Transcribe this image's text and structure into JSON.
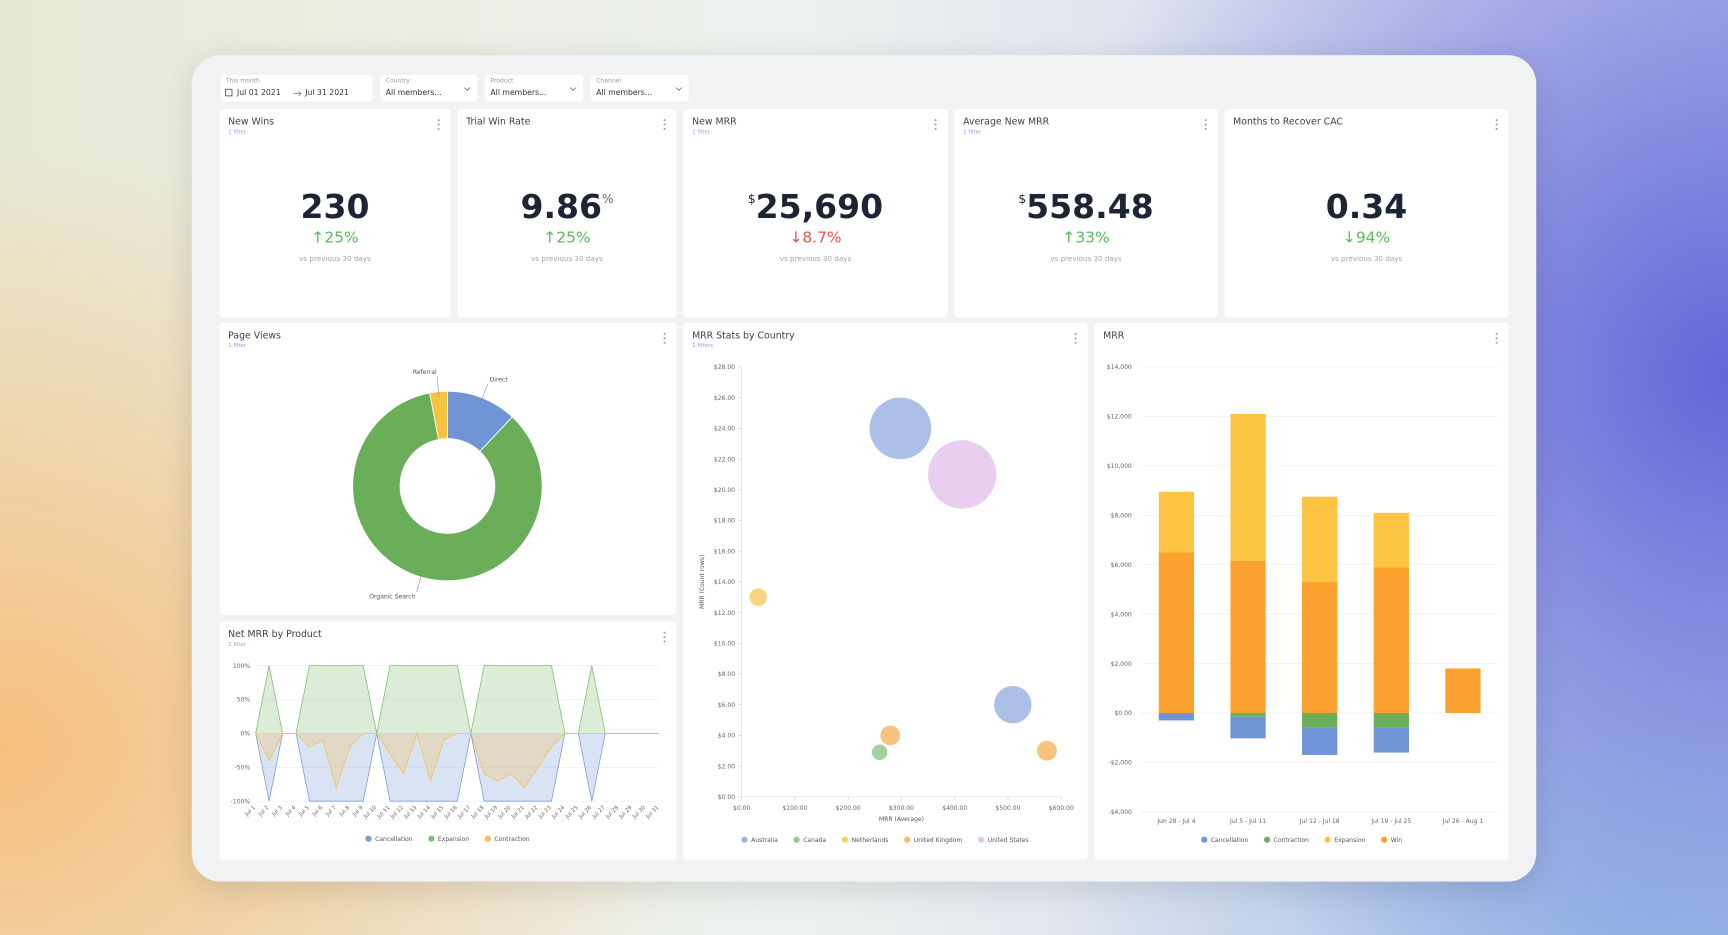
{
  "filters": [
    {
      "label": "This month",
      "start": "Jul 01 2021",
      "end": "Jul 31 2021"
    },
    {
      "label": "Country",
      "value": "All members..."
    },
    {
      "label": "Product",
      "value": "All members..."
    },
    {
      "label": "Channel",
      "value": "All members..."
    }
  ],
  "kpis": [
    {
      "title": "New Wins",
      "subtitle": "1 filter",
      "value": "230",
      "change": "↑25%",
      "change_color": "#5cb85c",
      "note": "vs previous 30 days"
    },
    {
      "title": "Trial Win Rate",
      "value": "9.86",
      "suffix": "%",
      "change": "↑25%",
      "change_color": "#5cb85c",
      "note": "vs previous 30 days"
    },
    {
      "title": "New MRR",
      "subtitle": "1 filter",
      "prefix": "$",
      "value": "25,690",
      "change": "↓8.7%",
      "change_color": "#e5534b",
      "note": "vs previous 30 days"
    },
    {
      "title": "Average New MRR",
      "subtitle": "1 filter",
      "prefix": "$",
      "value": "558.48",
      "change": "↑33%",
      "change_color": "#5cb85c",
      "note": "vs previous 30 days"
    },
    {
      "title": "Months to Recover CAC",
      "value": "0.34",
      "change": "↓94%",
      "change_color": "#5cb85c",
      "note": "vs previous 30 days"
    }
  ],
  "page_views": {
    "type": "pie",
    "title": "Page Views",
    "subtitle": "1 filter",
    "categories": [
      "Direct",
      "Organic Search",
      "Referral"
    ],
    "values": [
      12,
      85,
      3
    ],
    "colors": [
      "#6f95d6",
      "#6aae5a",
      "#f7c23c"
    ]
  },
  "net_mrr": {
    "type": "area",
    "title": "Net MRR by Product",
    "subtitle": "1 filter",
    "categories": [
      "Jul 1",
      "Jul 2",
      "Jul 3",
      "Jul 4",
      "Jul 5",
      "Jul 6",
      "Jul 7",
      "Jul 8",
      "Jul 9",
      "Jul 10",
      "Jul 11",
      "Jul 12",
      "Jul 13",
      "Jul 14",
      "Jul 15",
      "Jul 16",
      "Jul 17",
      "Jul 18",
      "Jul 19",
      "Jul 20",
      "Jul 21",
      "Jul 22",
      "Jul 23",
      "Jul 24",
      "Jul 25",
      "Jul 26",
      "Jul 27",
      "Jul 28",
      "Jul 29",
      "Jul 30",
      "Jul 31"
    ],
    "ylim": [
      -100,
      100
    ],
    "yticks": [
      {
        "value": 100,
        "label": "100%"
      },
      {
        "value": 50,
        "label": "50%"
      },
      {
        "value": 0,
        "label": "0%"
      },
      {
        "value": -50,
        "label": "-50%"
      },
      {
        "value": -100,
        "label": "-100%"
      }
    ],
    "series": [
      {
        "name": "Cancellation",
        "color": "#7b9bd6",
        "values": [
          0,
          -100,
          0,
          0,
          -100,
          -100,
          -100,
          -100,
          -100,
          0,
          -100,
          -100,
          -100,
          -100,
          -100,
          -100,
          0,
          -100,
          -100,
          -100,
          -100,
          -100,
          -100,
          0,
          0,
          -100,
          0,
          0,
          0,
          0,
          0
        ]
      },
      {
        "name": "Expansion",
        "color": "#7fbf6e",
        "values": [
          0,
          100,
          0,
          0,
          100,
          100,
          100,
          100,
          100,
          0,
          100,
          100,
          100,
          100,
          100,
          100,
          0,
          100,
          100,
          100,
          100,
          100,
          100,
          0,
          0,
          100,
          0,
          0,
          0,
          0,
          0
        ]
      },
      {
        "name": "Contraction",
        "color": "#f5c04a",
        "values": [
          0,
          -40,
          0,
          0,
          -20,
          -10,
          -80,
          -20,
          0,
          0,
          -30,
          -60,
          0,
          -70,
          -10,
          0,
          0,
          -60,
          -70,
          -60,
          -80,
          -50,
          -20,
          0,
          0,
          0,
          0,
          0,
          0,
          0,
          0
        ]
      }
    ]
  },
  "mrr_stats": {
    "type": "scatter",
    "title": "MRR Stats by Country",
    "subtitle": "2 filters",
    "x_label": "MRR (Average)",
    "y_label": "MRR (Count rows)",
    "xlim": [
      0,
      600
    ],
    "xticks": [
      {
        "value": 0,
        "label": "$0.00"
      },
      {
        "value": 100,
        "label": "$100.00"
      },
      {
        "value": 200,
        "label": "$200.00"
      },
      {
        "value": 300,
        "label": "$300.00"
      },
      {
        "value": 400,
        "label": "$400.00"
      },
      {
        "value": 500,
        "label": "$500.00"
      },
      {
        "value": 600,
        "label": "$600.00"
      }
    ],
    "ylim": [
      0,
      28
    ],
    "yticks": [
      {
        "value": 0,
        "label": "$0.00"
      },
      {
        "value": 2,
        "label": "$2.00"
      },
      {
        "value": 4,
        "label": "$4.00"
      },
      {
        "value": 6,
        "label": "$6.00"
      },
      {
        "value": 8,
        "label": "$8.00"
      },
      {
        "value": 10,
        "label": "$10.00"
      },
      {
        "value": 12,
        "label": "$12.00"
      },
      {
        "value": 14,
        "label": "$14.00"
      },
      {
        "value": 16,
        "label": "$16.00"
      },
      {
        "value": 18,
        "label": "$18.00"
      },
      {
        "value": 20,
        "label": "$20.00"
      },
      {
        "value": 22,
        "label": "$22.00"
      },
      {
        "value": 24,
        "label": "$24.00"
      },
      {
        "value": 26,
        "label": "$26.00"
      },
      {
        "value": 28,
        "label": "$28.00"
      }
    ],
    "series": [
      {
        "name": "Australia",
        "color": "#9db5e3",
        "x": [
          298,
          509
        ],
        "y": [
          24,
          6
        ],
        "sizes": [
          28,
          17
        ]
      },
      {
        "name": "Canada",
        "color": "#8fcb8a",
        "x": [
          259
        ],
        "y": [
          2.9
        ],
        "sizes": [
          7
        ]
      },
      {
        "name": "Netherlands",
        "color": "#f7cf6a",
        "x": [
          31
        ],
        "y": [
          13
        ],
        "sizes": [
          8
        ]
      },
      {
        "name": "United Kingdom",
        "color": "#f7b869",
        "x": [
          279,
          573
        ],
        "y": [
          4,
          3
        ],
        "sizes": [
          9,
          9
        ]
      },
      {
        "name": "United States",
        "color": "#e6c6ec",
        "x": [
          414
        ],
        "y": [
          21
        ],
        "sizes": [
          31
        ]
      }
    ]
  },
  "mrr": {
    "type": "bar",
    "title": "MRR",
    "grid": true,
    "categories": [
      "Jun 28 - Jul 4",
      "Jul 5 - Jul 11",
      "Jul 12 - Jul 18",
      "Jul 19 - Jul 25",
      "Jul 26 - Aug 1"
    ],
    "ylim": [
      -4000,
      14000
    ],
    "yticks": [
      {
        "value": 14000,
        "label": "$14,000"
      },
      {
        "value": 12000,
        "label": "$12,000"
      },
      {
        "value": 10000,
        "label": "$10,000"
      },
      {
        "value": 8000,
        "label": "$8,000"
      },
      {
        "value": 6000,
        "label": "$6,000"
      },
      {
        "value": 4000,
        "label": "$4,000"
      },
      {
        "value": 2000,
        "label": "$2,000"
      },
      {
        "value": 0,
        "label": "$0.00"
      },
      {
        "value": -2000,
        "label": "-$2,000"
      },
      {
        "value": -4000,
        "label": "-$4,000"
      }
    ],
    "series": [
      {
        "name": "Cancellation",
        "color": "#6f95d6",
        "values": [
          -300,
          -875,
          -1100,
          -1000,
          0
        ]
      },
      {
        "name": "Contraction",
        "color": "#6aae5a",
        "values": [
          0,
          -150,
          -600,
          -600,
          0
        ]
      },
      {
        "name": "Expansion",
        "color": "#fdc444",
        "values": [
          2450,
          5950,
          3450,
          2200,
          0
        ]
      },
      {
        "name": "Win",
        "color": "#fba12f",
        "values": [
          6500,
          6150,
          5300,
          5900,
          1800
        ]
      }
    ]
  }
}
